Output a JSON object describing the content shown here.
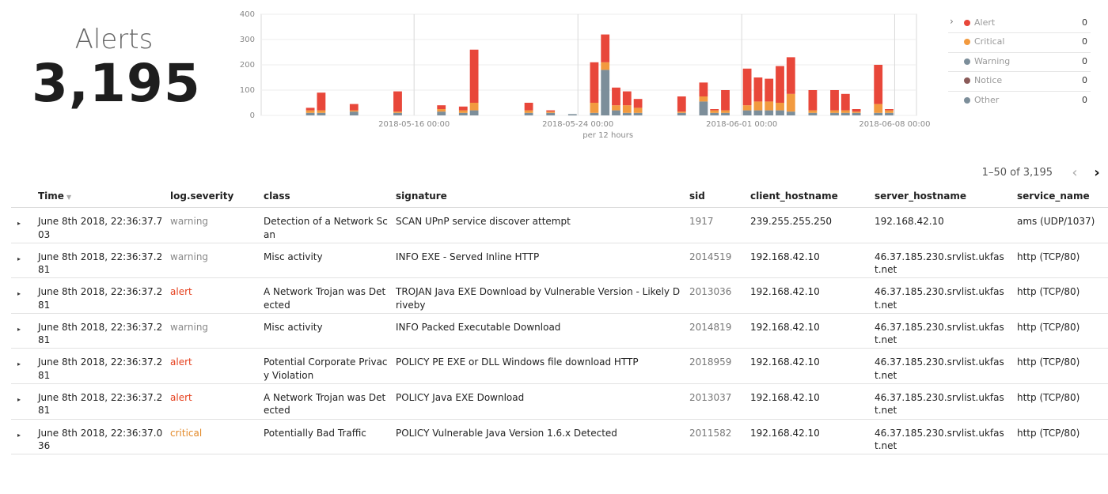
{
  "metric": {
    "label": "Alerts",
    "value": "3,195"
  },
  "chart_data": {
    "type": "bar",
    "stacked": true,
    "xlabel": "per 12 hours",
    "x_tick_labels": [
      "2018-05-16 00:00",
      "2018-05-24 00:00",
      "2018-06-01 00:00",
      "2018-06-08 00:00"
    ],
    "y_tick_labels": [
      "0",
      "100",
      "200",
      "300",
      "400"
    ],
    "ylim": [
      0,
      400
    ],
    "grid": true,
    "series_colors": {
      "Alert": "#e8473a",
      "Critical": "#f29a3f",
      "Warning": "#7c8e9a"
    },
    "bars": [
      {
        "bin": 4,
        "Warning": 10,
        "Critical": 10,
        "Alert": 10
      },
      {
        "bin": 5,
        "Warning": 10,
        "Critical": 10,
        "Alert": 70
      },
      {
        "bin": 8,
        "Warning": 15,
        "Critical": 5,
        "Alert": 25
      },
      {
        "bin": 12,
        "Warning": 10,
        "Critical": 5,
        "Alert": 80
      },
      {
        "bin": 16,
        "Warning": 15,
        "Critical": 10,
        "Alert": 15
      },
      {
        "bin": 18,
        "Warning": 10,
        "Critical": 10,
        "Alert": 15
      },
      {
        "bin": 19,
        "Warning": 20,
        "Critical": 30,
        "Alert": 210
      },
      {
        "bin": 24,
        "Warning": 10,
        "Critical": 10,
        "Alert": 30
      },
      {
        "bin": 26,
        "Warning": 10,
        "Critical": 5,
        "Alert": 5
      },
      {
        "bin": 28,
        "Warning": 5,
        "Critical": 0,
        "Alert": 0
      },
      {
        "bin": 30,
        "Warning": 10,
        "Critical": 40,
        "Alert": 160
      },
      {
        "bin": 31,
        "Warning": 180,
        "Critical": 30,
        "Alert": 110
      },
      {
        "bin": 32,
        "Warning": 20,
        "Critical": 20,
        "Alert": 70
      },
      {
        "bin": 33,
        "Warning": 10,
        "Critical": 30,
        "Alert": 55
      },
      {
        "bin": 34,
        "Warning": 10,
        "Critical": 20,
        "Alert": 35
      },
      {
        "bin": 38,
        "Warning": 10,
        "Critical": 5,
        "Alert": 60
      },
      {
        "bin": 40,
        "Warning": 55,
        "Critical": 20,
        "Alert": 55
      },
      {
        "bin": 41,
        "Warning": 10,
        "Critical": 10,
        "Alert": 5
      },
      {
        "bin": 42,
        "Warning": 10,
        "Critical": 10,
        "Alert": 80
      },
      {
        "bin": 44,
        "Warning": 20,
        "Critical": 20,
        "Alert": 145
      },
      {
        "bin": 45,
        "Warning": 20,
        "Critical": 35,
        "Alert": 95
      },
      {
        "bin": 46,
        "Warning": 20,
        "Critical": 35,
        "Alert": 90
      },
      {
        "bin": 47,
        "Warning": 20,
        "Critical": 30,
        "Alert": 145
      },
      {
        "bin": 48,
        "Warning": 15,
        "Critical": 70,
        "Alert": 145
      },
      {
        "bin": 50,
        "Warning": 10,
        "Critical": 10,
        "Alert": 80
      },
      {
        "bin": 52,
        "Warning": 10,
        "Critical": 10,
        "Alert": 80
      },
      {
        "bin": 53,
        "Warning": 10,
        "Critical": 10,
        "Alert": 65
      },
      {
        "bin": 54,
        "Warning": 10,
        "Critical": 5,
        "Alert": 10
      },
      {
        "bin": 56,
        "Warning": 10,
        "Critical": 35,
        "Alert": 155
      },
      {
        "bin": 57,
        "Warning": 10,
        "Critical": 10,
        "Alert": 5
      }
    ]
  },
  "legend": [
    {
      "name": "Alert",
      "color": "#e8473a",
      "count": "0"
    },
    {
      "name": "Critical",
      "color": "#f29a3f",
      "count": "0"
    },
    {
      "name": "Warning",
      "color": "#7c8e9a",
      "count": "0"
    },
    {
      "name": "Notice",
      "color": "#8a5a58",
      "count": "0"
    },
    {
      "name": "Other",
      "color": "#7c8e9a",
      "count": "0"
    }
  ],
  "pager": {
    "text": "1–50 of 3,195",
    "prev_icon": "chevron-left-icon",
    "next_icon": "chevron-right-icon"
  },
  "table": {
    "columns": [
      "Time",
      "log.severity",
      "class",
      "signature",
      "sid",
      "client_hostname",
      "server_hostname",
      "service_name"
    ],
    "sort_icon": "sort-down-icon",
    "rows": [
      {
        "time": "June 8th 2018, 22:36:37.703",
        "severity": "warning",
        "class": "Detection of a Network Scan",
        "signature": "SCAN UPnP service discover attempt",
        "sid": "1917",
        "client": "239.255.255.250",
        "server": "192.168.42.10",
        "service": "ams (UDP/1037)"
      },
      {
        "time": "June 8th 2018, 22:36:37.281",
        "severity": "warning",
        "class": "Misc activity",
        "signature": "INFO EXE - Served Inline HTTP",
        "sid": "2014519",
        "client": "192.168.42.10",
        "server": "46.37.185.230.srvlist.ukfast.net",
        "service": "http (TCP/80)"
      },
      {
        "time": "June 8th 2018, 22:36:37.281",
        "severity": "alert",
        "class": "A Network Trojan was Detected",
        "signature": "TROJAN Java EXE Download by Vulnerable Version - Likely Driveby",
        "sid": "2013036",
        "client": "192.168.42.10",
        "server": "46.37.185.230.srvlist.ukfast.net",
        "service": "http (TCP/80)"
      },
      {
        "time": "June 8th 2018, 22:36:37.281",
        "severity": "warning",
        "class": "Misc activity",
        "signature": "INFO Packed Executable Download",
        "sid": "2014819",
        "client": "192.168.42.10",
        "server": "46.37.185.230.srvlist.ukfast.net",
        "service": "http (TCP/80)"
      },
      {
        "time": "June 8th 2018, 22:36:37.281",
        "severity": "alert",
        "class": "Potential Corporate Privacy Violation",
        "signature": "POLICY PE EXE or DLL Windows file download HTTP",
        "sid": "2018959",
        "client": "192.168.42.10",
        "server": "46.37.185.230.srvlist.ukfast.net",
        "service": "http (TCP/80)"
      },
      {
        "time": "June 8th 2018, 22:36:37.281",
        "severity": "alert",
        "class": "A Network Trojan was Detected",
        "signature": "POLICY Java EXE Download",
        "sid": "2013037",
        "client": "192.168.42.10",
        "server": "46.37.185.230.srvlist.ukfast.net",
        "service": "http (TCP/80)"
      },
      {
        "time": "June 8th 2018, 22:36:37.036",
        "severity": "critical",
        "class": "Potentially Bad Traffic",
        "signature": "POLICY Vulnerable Java Version 1.6.x Detected",
        "sid": "2011582",
        "client": "192.168.42.10",
        "server": "46.37.185.230.srvlist.ukfast.net",
        "service": "http (TCP/80)"
      }
    ]
  }
}
